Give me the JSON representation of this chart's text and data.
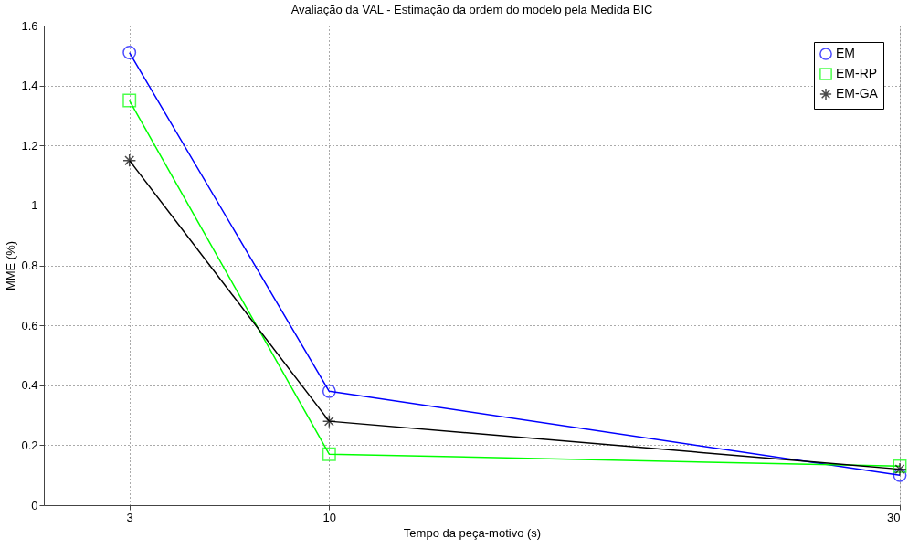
{
  "chart_data": {
    "type": "line",
    "title": "Avaliação da VAL - Estimação da ordem do modelo pela Medida BIC",
    "xlabel": "Tempo da peça-motivo (s)",
    "ylabel": "MME (%)",
    "x": [
      3,
      10,
      30
    ],
    "series": [
      {
        "name": "EM",
        "color": "#0000ff",
        "marker": "circle",
        "values": [
          1.51,
          0.38,
          0.1
        ]
      },
      {
        "name": "EM-RP",
        "color": "#00ff00",
        "marker": "square",
        "values": [
          1.35,
          0.17,
          0.13
        ]
      },
      {
        "name": "EM-GA",
        "color": "#000000",
        "marker": "cross",
        "values": [
          1.15,
          0.28,
          0.12
        ]
      }
    ],
    "xlim": [
      0,
      30
    ],
    "xticks": [
      3,
      10,
      30
    ],
    "ylim": [
      0,
      1.6
    ],
    "yticks": [
      0,
      0.2,
      0.4,
      0.6,
      0.8,
      1,
      1.2,
      1.4,
      1.6
    ],
    "grid": true,
    "legend": "top right",
    "line_style": "solid"
  }
}
